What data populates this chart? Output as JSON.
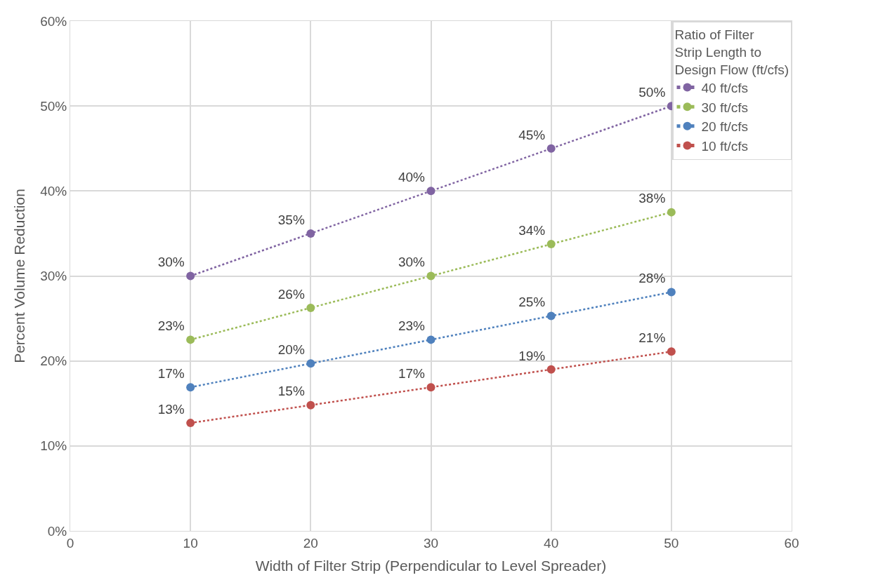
{
  "chart_data": {
    "type": "line",
    "xlabel": "Width of Filter Strip (Perpendicular to Level Spreader)",
    "ylabel": "Percent Volume Reduction",
    "legend_title": "Ratio of Filter Strip Length to Design Flow (ft/cfs)",
    "x": [
      10,
      20,
      30,
      40,
      50
    ],
    "xlim": [
      0,
      60
    ],
    "xticks": [
      0,
      10,
      20,
      30,
      40,
      50,
      60
    ],
    "ylim": [
      0,
      60
    ],
    "yticks": [
      {
        "value": 0,
        "label": "0%"
      },
      {
        "value": 10,
        "label": "10%"
      },
      {
        "value": 20,
        "label": "20%"
      },
      {
        "value": 30,
        "label": "30%"
      },
      {
        "value": 40,
        "label": "40%"
      },
      {
        "value": 50,
        "label": "50%"
      },
      {
        "value": 60,
        "label": "60%"
      }
    ],
    "grid": true,
    "legend": "top right",
    "marker": "circle",
    "line_style": "dotted",
    "series": [
      {
        "name": "40 ft/cfs",
        "color": "#8064a2",
        "values": [
          30,
          35,
          40,
          45,
          50
        ],
        "value_labels": [
          "30%",
          "35%",
          "40%",
          "45%",
          "50%"
        ]
      },
      {
        "name": "30 ft/cfs",
        "color": "#9bbb59",
        "values": [
          22.5,
          26.25,
          30,
          33.75,
          37.5
        ],
        "value_labels": [
          "23%",
          "26%",
          "30%",
          "34%",
          "38%"
        ]
      },
      {
        "name": "20 ft/cfs",
        "color": "#4f81bd",
        "values": [
          16.9,
          19.7,
          22.5,
          25.3,
          28.1
        ],
        "value_labels": [
          "17%",
          "20%",
          "23%",
          "25%",
          "28%"
        ]
      },
      {
        "name": "10 ft/cfs",
        "color": "#c0504d",
        "values": [
          12.7,
          14.8,
          16.9,
          19.0,
          21.1
        ],
        "value_labels": [
          "13%",
          "15%",
          "17%",
          "19%",
          "21%"
        ]
      }
    ]
  }
}
